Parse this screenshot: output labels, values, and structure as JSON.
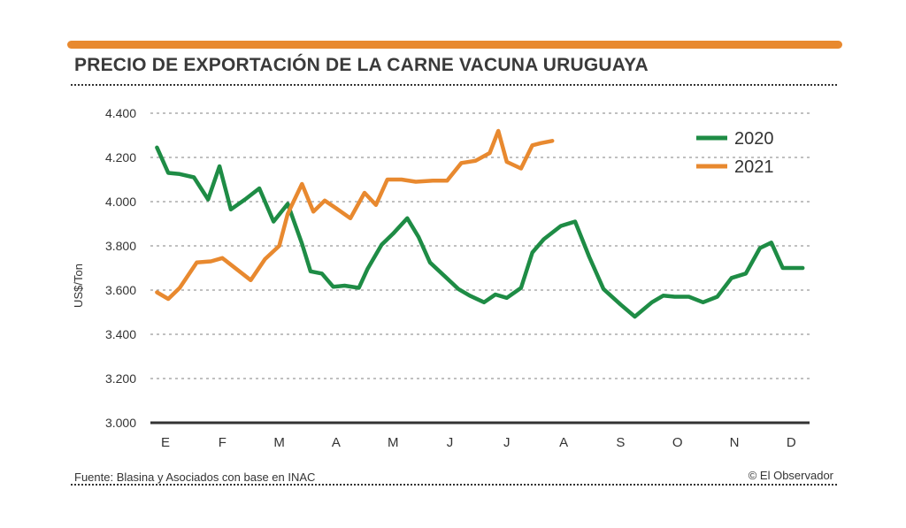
{
  "title": "PRECIO DE EXPORTACIÓN DE LA CARNE VACUNA URUGUAYA",
  "source": "Fuente: Blasina y Asociados con base en INAC",
  "credit": "© El Observador",
  "colors": {
    "accent_bar": "#e8892f",
    "series_2020": "#1e8c45",
    "series_2021": "#e8892f"
  },
  "chart_data": {
    "type": "line",
    "title": "PRECIO DE EXPORTACIÓN DE LA CARNE VACUNA URUGUAYA",
    "xlabel": "",
    "ylabel": "US$/Ton",
    "ylim": [
      3000,
      4400
    ],
    "yticks": [
      3000,
      3200,
      3400,
      3600,
      3800,
      4000,
      4200,
      4400
    ],
    "ytick_labels": [
      "3.000",
      "3.200",
      "3.400",
      "3.600",
      "3.800",
      "4.000",
      "4.200",
      "4.400"
    ],
    "xlim": [
      0,
      11.2
    ],
    "categories": [
      "E",
      "F",
      "M",
      "A",
      "M",
      "J",
      "J",
      "A",
      "S",
      "O",
      "N",
      "D"
    ],
    "grid": true,
    "legend_position": "top-right",
    "series": [
      {
        "name": "2020",
        "color": "#1e8c45",
        "x": [
          -0.15,
          0.05,
          0.25,
          0.5,
          0.75,
          0.95,
          1.15,
          1.4,
          1.65,
          1.9,
          2.15,
          2.4,
          2.55,
          2.75,
          2.95,
          3.15,
          3.4,
          3.55,
          3.8,
          4.0,
          4.25,
          4.45,
          4.65,
          4.9,
          5.15,
          5.35,
          5.6,
          5.8,
          6.0,
          6.25,
          6.45,
          6.65,
          6.95,
          7.2,
          7.45,
          7.7,
          8.0,
          8.25,
          8.55,
          8.75,
          8.95,
          9.2,
          9.45,
          9.7,
          9.95,
          10.2,
          10.45,
          10.65,
          10.85,
          11.0,
          11.2
        ],
        "values": [
          4245,
          4130,
          4125,
          4110,
          4010,
          4160,
          3965,
          4010,
          4060,
          3910,
          3990,
          3810,
          3685,
          3675,
          3615,
          3620,
          3610,
          3695,
          3805,
          3855,
          3925,
          3840,
          3725,
          3665,
          3605,
          3575,
          3545,
          3580,
          3565,
          3610,
          3770,
          3830,
          3890,
          3910,
          3750,
          3605,
          3535,
          3480,
          3545,
          3575,
          3570,
          3570,
          3545,
          3570,
          3655,
          3675,
          3790,
          3815,
          3700,
          3700,
          3700
        ]
      },
      {
        "name": "2021",
        "color": "#e8892f",
        "x": [
          -0.15,
          0.05,
          0.25,
          0.55,
          0.8,
          1.0,
          1.25,
          1.5,
          1.75,
          2.0,
          2.15,
          2.4,
          2.6,
          2.8,
          3.0,
          3.25,
          3.5,
          3.7,
          3.9,
          4.15,
          4.4,
          4.7,
          4.95,
          5.2,
          5.45,
          5.7,
          5.85,
          6.0,
          6.25,
          6.45,
          6.6,
          6.8
        ],
        "values": [
          3590,
          3560,
          3610,
          3725,
          3730,
          3745,
          3695,
          3645,
          3740,
          3800,
          3945,
          4080,
          3955,
          4005,
          3970,
          3925,
          4040,
          3985,
          4100,
          4100,
          4090,
          4095,
          4095,
          4175,
          4185,
          4220,
          4320,
          4180,
          4150,
          4255,
          4265,
          4275
        ]
      }
    ]
  }
}
